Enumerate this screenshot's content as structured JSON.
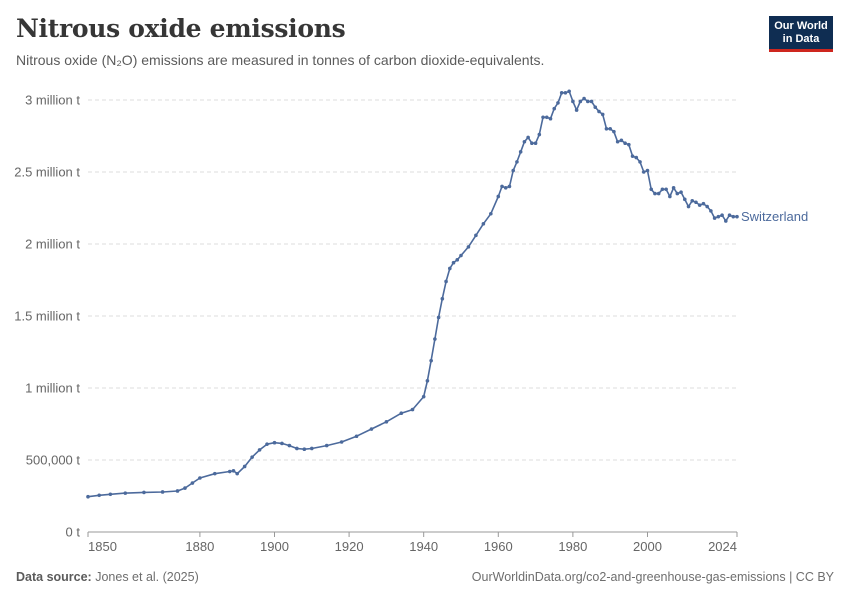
{
  "header": {
    "title": "Nitrous oxide emissions",
    "subtitle": "Nitrous oxide (N₂O) emissions are measured in tonnes of carbon dioxide-equivalents."
  },
  "logo": {
    "line1": "Our World",
    "line2": "in Data"
  },
  "footer": {
    "source_label": "Data source:",
    "source_value": "Jones et al. (2025)",
    "url": "OurWorldinData.org/co2-and-greenhouse-gas-emissions | CC BY"
  },
  "colors": {
    "series": "#4c6a9c",
    "grid": "#dddddd",
    "logo_bg": "#0f2d52",
    "logo_accent": "#ce261e"
  },
  "chart_data": {
    "type": "line",
    "title": "Nitrous oxide emissions",
    "subtitle": "Nitrous oxide (N₂O) emissions are measured in tonnes of carbon dioxide-equivalents.",
    "xlabel": "",
    "ylabel": "",
    "xlim": [
      1850,
      2024
    ],
    "ylim": [
      0,
      3000000
    ],
    "x_ticks": [
      1850,
      1880,
      1900,
      1920,
      1940,
      1960,
      1980,
      2000,
      2024
    ],
    "y_ticks": [
      0,
      500000,
      1000000,
      1500000,
      2000000,
      2500000,
      3000000
    ],
    "y_tick_labels": [
      "0 t",
      "500,000 t",
      "1 million t",
      "1.5 million t",
      "2 million t",
      "2.5 million t",
      "3 million t"
    ],
    "grid": "horizontal dashed",
    "series": [
      {
        "name": "Switzerland",
        "x": [
          1850,
          1853,
          1856,
          1860,
          1865,
          1870,
          1874,
          1876,
          1878,
          1880,
          1884,
          1888,
          1889,
          1890,
          1892,
          1894,
          1896,
          1898,
          1900,
          1902,
          1904,
          1906,
          1908,
          1910,
          1914,
          1918,
          1922,
          1926,
          1930,
          1934,
          1937,
          1940,
          1941,
          1942,
          1943,
          1944,
          1945,
          1946,
          1947,
          1948,
          1949,
          1950,
          1952,
          1954,
          1956,
          1958,
          1960,
          1961,
          1962,
          1963,
          1964,
          1965,
          1966,
          1967,
          1968,
          1969,
          1970,
          1971,
          1972,
          1973,
          1974,
          1975,
          1976,
          1977,
          1978,
          1979,
          1980,
          1981,
          1982,
          1983,
          1984,
          1985,
          1986,
          1987,
          1988,
          1989,
          1990,
          1991,
          1992,
          1993,
          1994,
          1995,
          1996,
          1997,
          1998,
          1999,
          2000,
          2001,
          2002,
          2003,
          2004,
          2005,
          2006,
          2007,
          2008,
          2009,
          2010,
          2011,
          2012,
          2013,
          2014,
          2015,
          2016,
          2017,
          2018,
          2019,
          2020,
          2021,
          2022,
          2023,
          2024
        ],
        "values": [
          245000,
          255000,
          262000,
          270000,
          275000,
          278000,
          285000,
          305000,
          340000,
          375000,
          405000,
          420000,
          425000,
          405000,
          455000,
          520000,
          570000,
          610000,
          620000,
          615000,
          600000,
          580000,
          575000,
          580000,
          600000,
          625000,
          665000,
          715000,
          765000,
          825000,
          850000,
          940000,
          1050000,
          1190000,
          1340000,
          1490000,
          1620000,
          1740000,
          1830000,
          1870000,
          1890000,
          1920000,
          1980000,
          2060000,
          2140000,
          2210000,
          2330000,
          2400000,
          2390000,
          2400000,
          2510000,
          2570000,
          2640000,
          2710000,
          2740000,
          2700000,
          2700000,
          2760000,
          2880000,
          2880000,
          2870000,
          2940000,
          2980000,
          3050000,
          3050000,
          3060000,
          2990000,
          2930000,
          2990000,
          3010000,
          2990000,
          2990000,
          2950000,
          2920000,
          2900000,
          2800000,
          2800000,
          2780000,
          2710000,
          2720000,
          2700000,
          2690000,
          2610000,
          2600000,
          2570000,
          2500000,
          2510000,
          2380000,
          2350000,
          2350000,
          2380000,
          2380000,
          2330000,
          2390000,
          2350000,
          2360000,
          2310000,
          2260000,
          2300000,
          2290000,
          2270000,
          2280000,
          2260000,
          2230000,
          2180000,
          2190000,
          2200000,
          2160000,
          2200000,
          2190000,
          2190000
        ]
      }
    ]
  }
}
